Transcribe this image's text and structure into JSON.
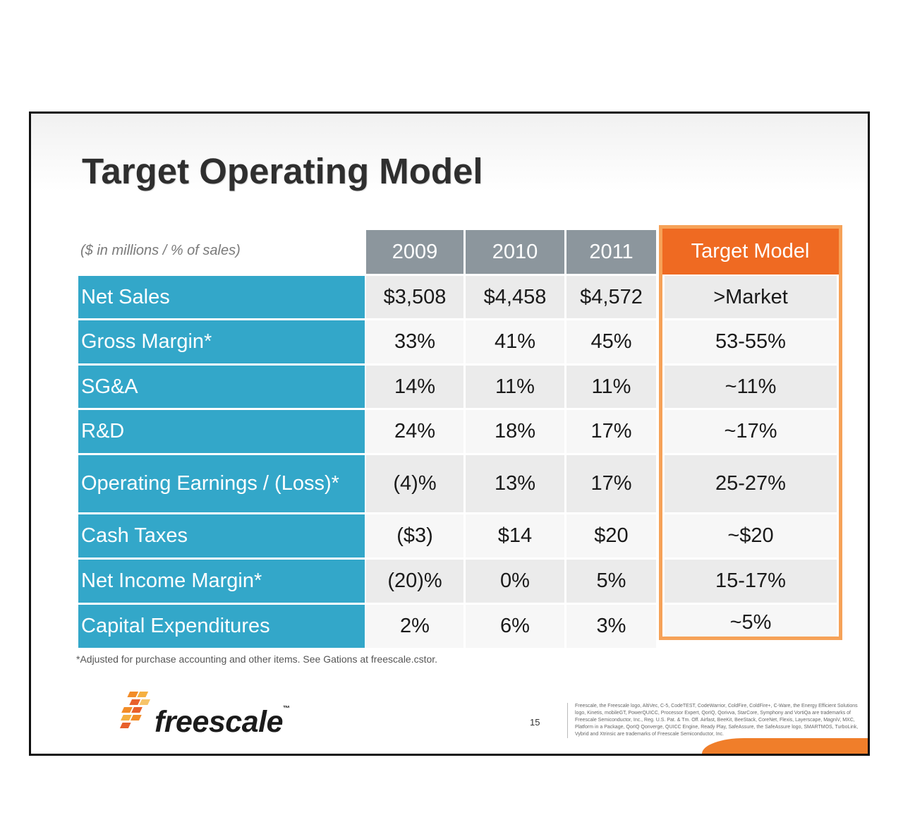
{
  "slide": {
    "title": "Target Operating Model",
    "units": "($ in millions / % of sales)",
    "footnote": "*Adjusted for purchase accounting and other items.  See Gations at freescale.cstor.",
    "page_number": "15",
    "logo_text": "freescale",
    "logo_tm": "™",
    "legal_text": "Freescale, the Freescale logo, AltiVec, C-5, CodeTEST, CodeWarrior, ColdFire, ColdFire+, C-Ware, the Energy Efficient Solutions logo, Kinetis, mobileGT, PowerQUICC, Processor Expert, QorIQ, Qorivva, StarCore, Symphony and VortiQa are trademarks of Freescale Semiconductor, Inc., Reg. U.S. Pat. & Tm. Off. Airfast, BeeKit, BeeStack, CoreNet, Flexis, Layerscape, MagniV, MXC, Platform in a Package, QorIQ Qonverge, QUICC Engine, Ready Play, SafeAssure, the SafeAssure logo, SMARTMOS, TurboLink, Vybrid and Xtrinsic are trademarks of Freescale Semiconductor, Inc."
  },
  "table": {
    "columns": [
      "2009",
      "2010",
      "2011"
    ],
    "target_header": "Target Model",
    "rows": [
      {
        "label": "Net Sales",
        "values": [
          "$3,508",
          "$4,458",
          "$4,572"
        ],
        "target": ">Market"
      },
      {
        "label": "Gross Margin*",
        "values": [
          "33%",
          "41%",
          "45%"
        ],
        "target": "53-55%"
      },
      {
        "label": "SG&A",
        "values": [
          "14%",
          "11%",
          "11%"
        ],
        "target": "~11%"
      },
      {
        "label": "R&D",
        "values": [
          "24%",
          "18%",
          "17%"
        ],
        "target": "~17%"
      },
      {
        "label": "Operating Earnings / (Loss)*",
        "values": [
          "(4)%",
          "13%",
          "17%"
        ],
        "target": "25-27%"
      },
      {
        "label": "Cash Taxes",
        "values": [
          "($3)",
          "$14",
          "$20"
        ],
        "target": "~$20"
      },
      {
        "label": "Net Income Margin*",
        "values": [
          "(20)%",
          "0%",
          "5%"
        ],
        "target": "15-17%"
      },
      {
        "label": "Capital Expenditures",
        "values": [
          "2%",
          "6%",
          "3%"
        ],
        "target": "~5%"
      }
    ]
  },
  "colors": {
    "label_bg": "#33a7c9",
    "header_bg": "#8c969d",
    "target_orange": "#ef6a22",
    "target_frame": "#f6a258"
  }
}
